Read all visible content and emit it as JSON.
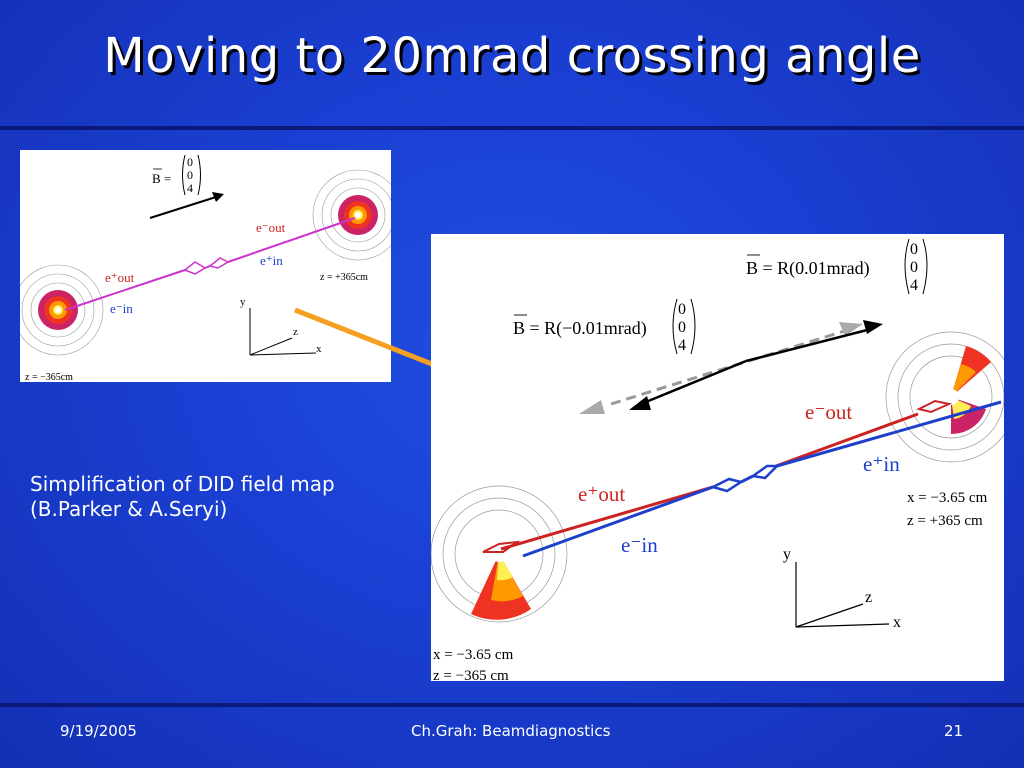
{
  "slide": {
    "title": "Moving to 20mrad crossing angle",
    "caption_line1": "Simplification of DID field map",
    "caption_line2": "(B.Parker & A.Seryi)",
    "footer_date": "9/19/2005",
    "footer_center": "Ch.Grah: Beamdiagnostics",
    "footer_page": "21"
  },
  "colors": {
    "background": "#1a3fd2",
    "beam_red": "#cc2222",
    "beam_blue": "#1c3fcc",
    "beam_magenta": "#cc33cc",
    "arrow_orange": "#f5a023"
  },
  "left_figure": {
    "b_label": "B =",
    "b_vector": [
      "0",
      "0",
      "4"
    ],
    "e_minus_out": "e⁻out",
    "e_plus_in": "e⁺in",
    "e_plus_out": "e⁺out",
    "e_minus_in": "e⁻in",
    "z_right": "z = +365cm",
    "z_left": "z = −365cm",
    "axis_y": "y",
    "axis_z": "z",
    "axis_x": "x"
  },
  "right_figure": {
    "b_top_label": "B = R(0.01mrad)",
    "b_top_vector": [
      "0",
      "0",
      "4"
    ],
    "b_mid_label": "B = R(−0.01mrad)",
    "b_mid_vector": [
      "0",
      "0",
      "4"
    ],
    "e_minus_out": "e⁻out",
    "e_plus_in": "e⁺in",
    "e_plus_out": "e⁺out",
    "e_minus_in": "e⁻in",
    "x_right": "x = −3.65 cm",
    "z_right": "z = +365 cm",
    "x_left": "x = −3.65 cm",
    "z_left": "z = −365 cm",
    "axis_y": "y",
    "axis_z": "z",
    "axis_x": "x"
  }
}
